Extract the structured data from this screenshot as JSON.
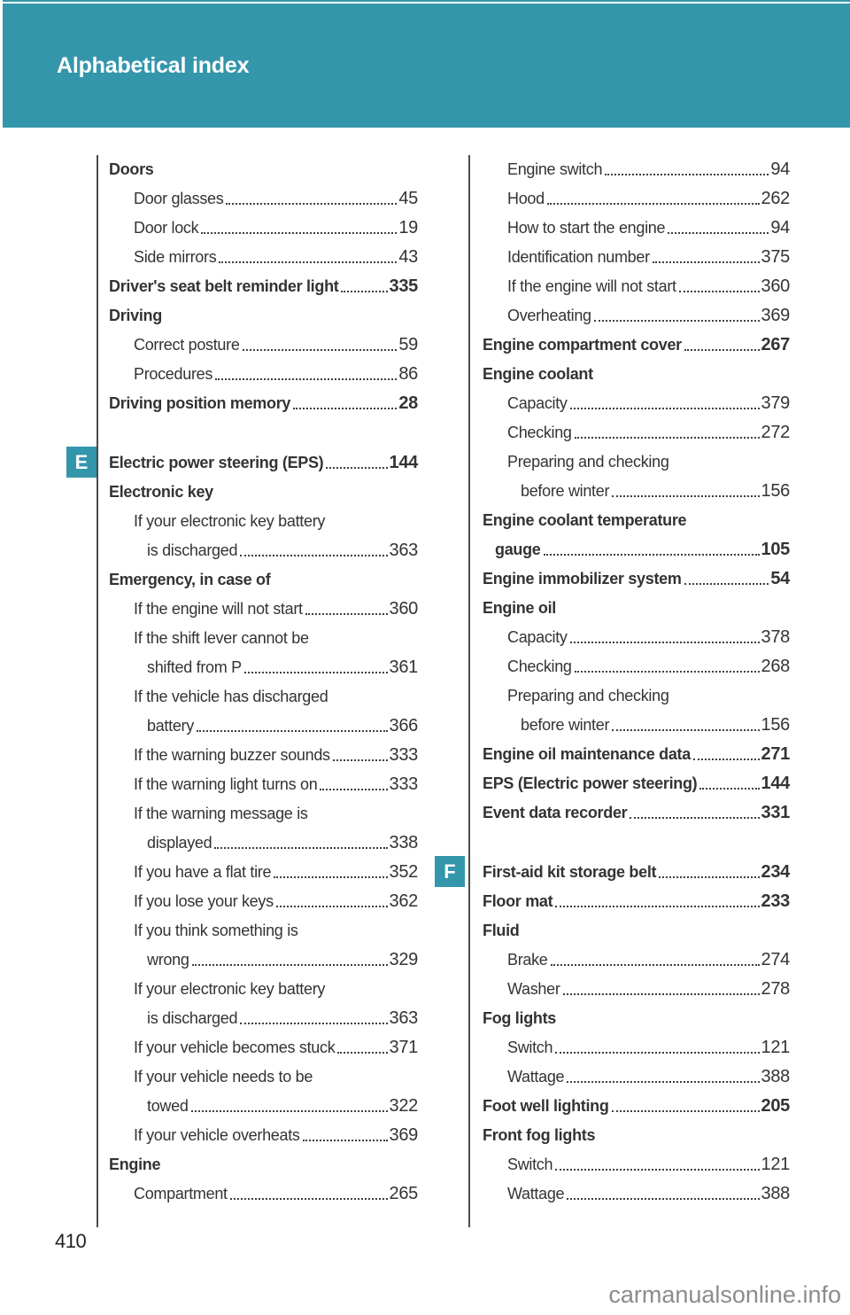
{
  "header": {
    "title": "Alphabetical index",
    "accent_color": "#3496ab",
    "title_color": "#ffffff"
  },
  "footer": {
    "page_number": "410",
    "watermark": "carmanualsonline.info",
    "watermark_color": "#8c8c8c"
  },
  "text_color": "#333431",
  "section_markers": [
    "E",
    "F"
  ],
  "columns": [
    {
      "entries": [
        {
          "text": "Doors",
          "page": "",
          "level": "main",
          "bold": true
        },
        {
          "text": "Door glasses",
          "page": "45",
          "level": "sub",
          "bold": false
        },
        {
          "text": "Door lock",
          "page": "19",
          "level": "sub",
          "bold": false
        },
        {
          "text": "Side mirrors",
          "page": "43",
          "level": "sub",
          "bold": false
        },
        {
          "text": "Driver's seat belt reminder light",
          "page": "335",
          "level": "main",
          "bold": true
        },
        {
          "text": "Driving",
          "page": "",
          "level": "main",
          "bold": true
        },
        {
          "text": "Correct posture",
          "page": "59",
          "level": "sub",
          "bold": false
        },
        {
          "text": "Procedures",
          "page": "86",
          "level": "sub",
          "bold": false
        },
        {
          "text": "Driving position memory",
          "page": "28",
          "level": "main",
          "bold": true
        },
        {
          "text": "Electric power steering (EPS)",
          "page": "144",
          "level": "main",
          "bold": true,
          "marker": "E",
          "spacer_before": true
        },
        {
          "text": "Electronic key",
          "page": "",
          "level": "main",
          "bold": true
        },
        {
          "text": "If your electronic key battery",
          "page": "",
          "level": "sub",
          "bold": false
        },
        {
          "text": "is discharged",
          "page": "363",
          "level": "sub2",
          "bold": false
        },
        {
          "text": "Emergency, in case of",
          "page": "",
          "level": "main",
          "bold": true
        },
        {
          "text": "If the engine will not start",
          "page": "360",
          "level": "sub",
          "bold": false
        },
        {
          "text": "If the shift lever cannot be",
          "page": "",
          "level": "sub",
          "bold": false
        },
        {
          "text": "shifted from P",
          "page": "361",
          "level": "sub2",
          "bold": false
        },
        {
          "text": "If the vehicle has discharged",
          "page": "",
          "level": "sub",
          "bold": false
        },
        {
          "text": "battery",
          "page": "366",
          "level": "sub2",
          "bold": false
        },
        {
          "text": "If the warning buzzer sounds",
          "page": "333",
          "level": "sub",
          "bold": false
        },
        {
          "text": "If the warning light turns on",
          "page": "333",
          "level": "sub",
          "bold": false
        },
        {
          "text": "If the warning message is",
          "page": "",
          "level": "sub",
          "bold": false
        },
        {
          "text": "displayed",
          "page": "338",
          "level": "sub2",
          "bold": false
        },
        {
          "text": "If you have a flat tire",
          "page": "352",
          "level": "sub",
          "bold": false
        },
        {
          "text": "If you lose your keys",
          "page": "362",
          "level": "sub",
          "bold": false
        },
        {
          "text": "If you think something is",
          "page": "",
          "level": "sub",
          "bold": false
        },
        {
          "text": "wrong",
          "page": "329",
          "level": "sub2",
          "bold": false
        },
        {
          "text": "If your electronic key battery",
          "page": "",
          "level": "sub",
          "bold": false
        },
        {
          "text": "is discharged",
          "page": "363",
          "level": "sub2",
          "bold": false
        },
        {
          "text": "If your vehicle becomes stuck",
          "page": "371",
          "level": "sub",
          "bold": false
        },
        {
          "text": "If your vehicle needs to be",
          "page": "",
          "level": "sub",
          "bold": false
        },
        {
          "text": "towed",
          "page": "322",
          "level": "sub2",
          "bold": false
        },
        {
          "text": "If your vehicle overheats",
          "page": "369",
          "level": "sub",
          "bold": false
        },
        {
          "text": "Engine",
          "page": "",
          "level": "main",
          "bold": true
        },
        {
          "text": "Compartment",
          "page": "265",
          "level": "sub",
          "bold": false
        }
      ]
    },
    {
      "entries": [
        {
          "text": "Engine switch",
          "page": "94",
          "level": "sub",
          "bold": false
        },
        {
          "text": "Hood",
          "page": "262",
          "level": "sub",
          "bold": false
        },
        {
          "text": "How to start the engine",
          "page": "94",
          "level": "sub",
          "bold": false
        },
        {
          "text": "Identification number",
          "page": "375",
          "level": "sub",
          "bold": false
        },
        {
          "text": "If the engine will not start",
          "page": "360",
          "level": "sub",
          "bold": false
        },
        {
          "text": "Overheating",
          "page": "369",
          "level": "sub",
          "bold": false
        },
        {
          "text": "Engine compartment cover",
          "page": "267",
          "level": "main",
          "bold": true
        },
        {
          "text": "Engine coolant",
          "page": "",
          "level": "main",
          "bold": true
        },
        {
          "text": "Capacity",
          "page": "379",
          "level": "sub",
          "bold": false
        },
        {
          "text": "Checking",
          "page": "272",
          "level": "sub",
          "bold": false
        },
        {
          "text": "Preparing and checking",
          "page": "",
          "level": "sub",
          "bold": false
        },
        {
          "text": "before winter",
          "page": "156",
          "level": "sub2",
          "bold": false
        },
        {
          "text": "Engine coolant temperature",
          "page": "",
          "level": "main",
          "bold": true
        },
        {
          "text": "gauge",
          "page": "105",
          "level": "maincont",
          "bold": true
        },
        {
          "text": "Engine immobilizer system",
          "page": "54",
          "level": "main",
          "bold": true
        },
        {
          "text": "Engine oil",
          "page": "",
          "level": "main",
          "bold": true
        },
        {
          "text": "Capacity",
          "page": "378",
          "level": "sub",
          "bold": false
        },
        {
          "text": "Checking",
          "page": "268",
          "level": "sub",
          "bold": false
        },
        {
          "text": "Preparing and checking",
          "page": "",
          "level": "sub",
          "bold": false
        },
        {
          "text": "before winter",
          "page": "156",
          "level": "sub2",
          "bold": false
        },
        {
          "text": "Engine oil maintenance data",
          "page": "271",
          "level": "main",
          "bold": true
        },
        {
          "text": "EPS (Electric power steering)",
          "page": "144",
          "level": "main",
          "bold": true
        },
        {
          "text": "Event data recorder",
          "page": "331",
          "level": "main",
          "bold": true
        },
        {
          "text": "First-aid kit storage belt",
          "page": "234",
          "level": "main",
          "bold": true,
          "marker": "F",
          "spacer_before": true
        },
        {
          "text": "Floor mat",
          "page": "233",
          "level": "main",
          "bold": true
        },
        {
          "text": "Fluid",
          "page": "",
          "level": "main",
          "bold": true
        },
        {
          "text": "Brake",
          "page": "274",
          "level": "sub",
          "bold": false
        },
        {
          "text": "Washer",
          "page": "278",
          "level": "sub",
          "bold": false
        },
        {
          "text": "Fog lights",
          "page": "",
          "level": "main",
          "bold": true
        },
        {
          "text": "Switch",
          "page": "121",
          "level": "sub",
          "bold": false
        },
        {
          "text": "Wattage",
          "page": "388",
          "level": "sub",
          "bold": false
        },
        {
          "text": "Foot well lighting",
          "page": "205",
          "level": "main",
          "bold": true
        },
        {
          "text": "Front fog lights",
          "page": "",
          "level": "main",
          "bold": true
        },
        {
          "text": "Switch",
          "page": "121",
          "level": "sub",
          "bold": false
        },
        {
          "text": "Wattage",
          "page": "388",
          "level": "sub",
          "bold": false
        }
      ]
    }
  ]
}
